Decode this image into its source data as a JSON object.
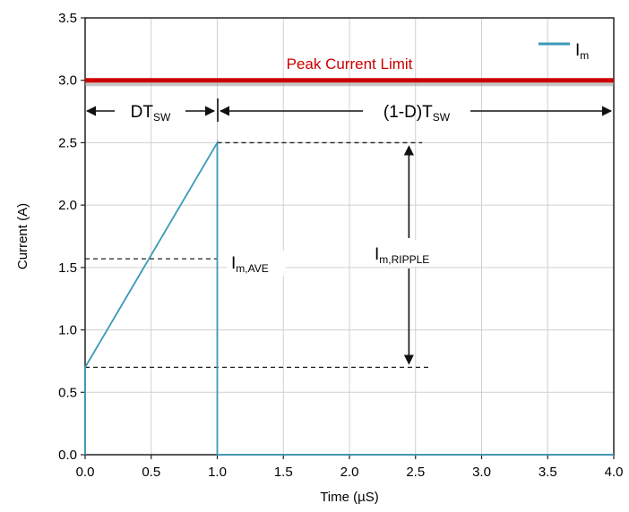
{
  "chart_data": {
    "type": "line",
    "xlabel": "Time (µS)",
    "ylabel": "Current (A)",
    "xlim": [
      0,
      4.0
    ],
    "ylim": [
      0,
      3.5
    ],
    "x_ticks": [
      "0.0",
      "0.5",
      "1.0",
      "1.5",
      "2.0",
      "2.5",
      "3.0",
      "3.5",
      "4.0"
    ],
    "y_ticks": [
      "0.0",
      "0.5",
      "1.0",
      "1.5",
      "2.0",
      "2.5",
      "3.0",
      "3.5"
    ],
    "grid": true,
    "legend_position": "top-right",
    "series": [
      {
        "name_main": "I",
        "name_sub": "m",
        "color": "#3a9ab8",
        "x": [
          0,
          0,
          1.0,
          1.0,
          4.0
        ],
        "y": [
          0,
          0.7,
          2.5,
          0,
          0
        ]
      }
    ],
    "peak_limit": {
      "label": "Peak Current Limit",
      "value": 3.0,
      "color": "#cc0000"
    },
    "annotations": {
      "dtsw": {
        "main": "DT",
        "sub": "SW"
      },
      "one_minus_d_tsw": {
        "main": "(1-D)T",
        "sub": "SW"
      },
      "iave": {
        "main": "I",
        "sub": "m,AVE",
        "value": 1.57
      },
      "iripple": {
        "main": "I",
        "sub": "m,RIPPLE",
        "low": 0.7,
        "high": 2.5
      }
    }
  }
}
